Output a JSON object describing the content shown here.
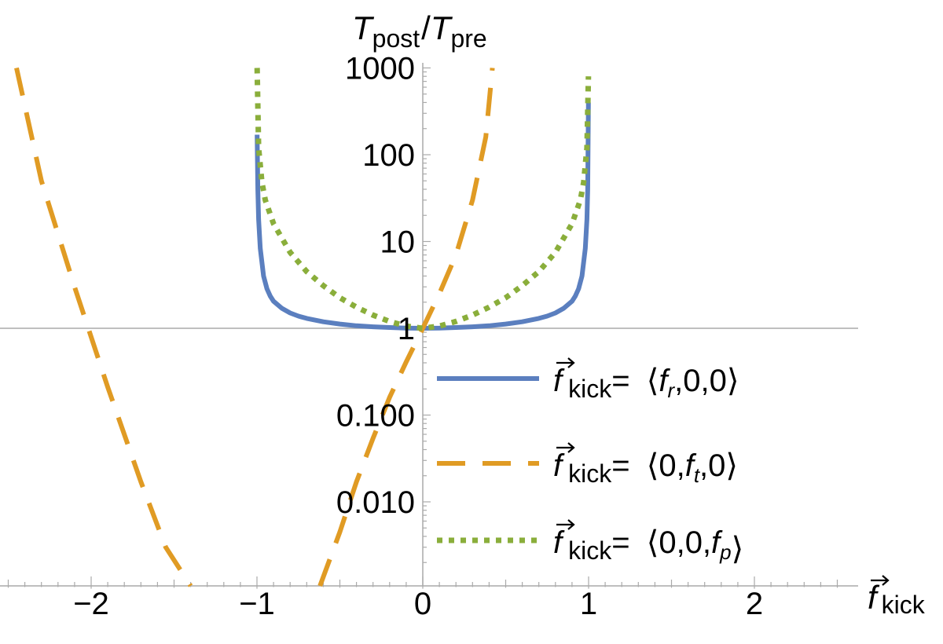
{
  "chart_data": {
    "type": "line",
    "title": "",
    "xlabel": {
      "main": "f",
      "sub": "kick"
    },
    "ylabel": {
      "main1": "T",
      "sub1": "post",
      "slash": "/",
      "main2": "T",
      "sub2": "pre"
    },
    "xlim": [
      -2.5,
      2.5
    ],
    "ylim": [
      0.0007,
      1000
    ],
    "yscale": "log",
    "grid": false,
    "legend_position": "right",
    "xticks": [
      "−2",
      "−1",
      "0",
      "1",
      "2"
    ],
    "yticks": [
      "0.010",
      "0.100",
      "1",
      "10",
      "100",
      "1000"
    ],
    "series": [
      {
        "name": "f kick= ⟨fr,0,0⟩",
        "legend": {
          "lhs": "f",
          "lhs_sub": "kick",
          "eq": "= ",
          "open": "⟨",
          "v1": "f",
          "v1_sub": "r",
          "c1": ",0,0",
          "close": "⟩"
        },
        "color": "#5B7FBF",
        "style": "solid",
        "x": [
          -0.999,
          -0.995,
          -0.99,
          -0.98,
          -0.96,
          -0.94,
          -0.92,
          -0.9,
          -0.85,
          -0.8,
          -0.75,
          -0.7,
          -0.6,
          -0.5,
          -0.4,
          -0.3,
          -0.2,
          -0.1,
          0,
          0.1,
          0.2,
          0.3,
          0.4,
          0.5,
          0.6,
          0.7,
          0.75,
          0.8,
          0.85,
          0.9,
          0.92,
          0.94,
          0.96,
          0.98,
          0.99,
          0.995,
          0.999
        ],
        "y": [
          170,
          40,
          18,
          8.3,
          4.0,
          2.85,
          2.35,
          2.05,
          1.7,
          1.5,
          1.38,
          1.3,
          1.19,
          1.12,
          1.07,
          1.04,
          1.02,
          1.005,
          1.0,
          1.005,
          1.02,
          1.04,
          1.07,
          1.12,
          1.19,
          1.3,
          1.38,
          1.5,
          1.7,
          2.05,
          2.35,
          2.85,
          4.0,
          8.3,
          18,
          40,
          400
        ]
      },
      {
        "name": "f kick= ⟨0,ft,0⟩",
        "legend": {
          "lhs": "f",
          "lhs_sub": "kick",
          "eq": "= ",
          "open": "⟨",
          "c0": "0,",
          "v1": "f",
          "v1_sub": "t",
          "c1": ",0",
          "close": "⟩"
        },
        "color": "#E09B24",
        "style": "dashed",
        "segments": [
          {
            "x": [
              -2.45,
              -2.3,
              -2.1,
              -1.9,
              -1.7,
              -1.55,
              -1.4
            ],
            "y": [
              1000,
              50,
              3.0,
              0.21,
              0.017,
              0.003,
              0.0007
            ]
          },
          {
            "x": [
              -0.62,
              -0.5,
              -0.4,
              -0.3,
              -0.2,
              -0.1,
              0,
              0.1,
              0.2,
              0.3,
              0.38,
              0.42
            ],
            "y": [
              0.0007,
              0.0045,
              0.017,
              0.054,
              0.16,
              0.41,
              1.0,
              2.5,
              7.0,
              30,
              160,
              1000
            ]
          }
        ]
      },
      {
        "name": "f kick= ⟨0,0,fp⟩",
        "legend": {
          "lhs": "f",
          "lhs_sub": "kick",
          "eq": "= ",
          "open": "⟨",
          "c0": "0,0,",
          "v1": "f",
          "v1_sub": "p",
          "close": "⟩"
        },
        "color": "#8AAE3B",
        "style": "dotted",
        "x": [
          -0.999,
          -0.99,
          -0.97,
          -0.95,
          -0.9,
          -0.8,
          -0.7,
          -0.6,
          -0.5,
          -0.4,
          -0.3,
          -0.2,
          -0.1,
          0,
          0.1,
          0.2,
          0.3,
          0.4,
          0.5,
          0.6,
          0.7,
          0.8,
          0.9,
          0.95,
          0.97,
          0.99,
          0.999
        ],
        "y": [
          1000,
          120,
          48,
          30,
          16,
          7.5,
          4.5,
          3.1,
          2.25,
          1.75,
          1.42,
          1.2,
          1.06,
          1.0,
          1.06,
          1.2,
          1.42,
          1.75,
          2.25,
          3.1,
          4.5,
          7.5,
          16,
          30,
          48,
          120,
          800
        ]
      }
    ]
  }
}
